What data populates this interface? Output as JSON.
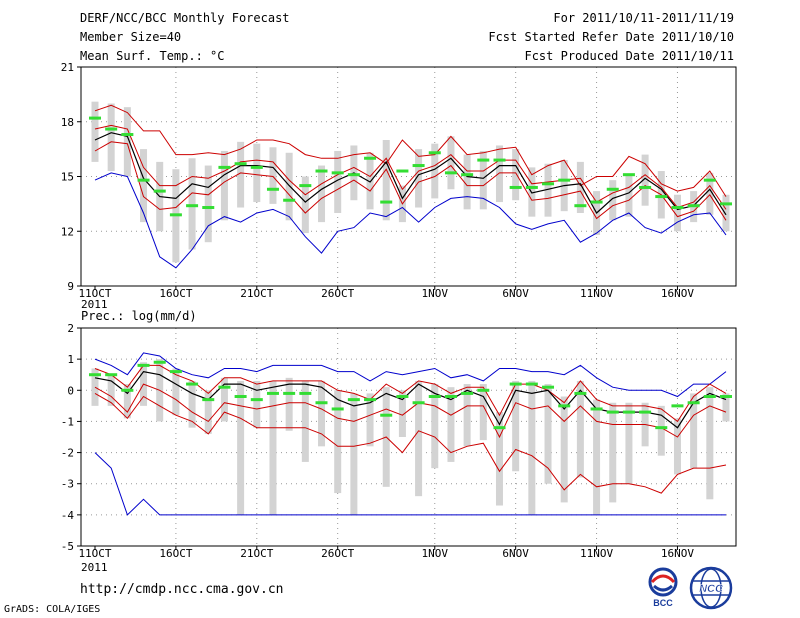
{
  "header": {
    "title": "DERF/NCC/BCC Monthly Forecast",
    "member": "Member Size=40",
    "variable": "Mean Surf. Temp.: °C",
    "period": "For 2011/10/11-2011/11/19",
    "started": "Fcst Started Refer Date 2011/10/10",
    "produced": "Fcst Produced Date 2011/10/11"
  },
  "footer": {
    "url": "http://cmdp.ncc.cma.gov.cn",
    "credit": "GrADS: COLA/IGES",
    "logo_bcc": "BCC",
    "logo_ncc": "NCC"
  },
  "colors": {
    "envelope": "#0000cc",
    "spread": "#cc0000",
    "mean": "#000000",
    "median": "#33dd33",
    "box": "#d3d3d3",
    "grid": "#999999"
  },
  "chart_data": [
    {
      "type": "line",
      "title": "Mean Surf. Temp.: °C",
      "ylim": [
        9,
        21
      ],
      "yticks": [
        9,
        12,
        15,
        18,
        21
      ],
      "xticks": [
        {
          "day": 0,
          "label": "11OCT",
          "sub": "2011"
        },
        {
          "day": 5,
          "label": "16OCT"
        },
        {
          "day": 10,
          "label": "21OCT"
        },
        {
          "day": 15,
          "label": "26OCT"
        },
        {
          "day": 21,
          "label": "1NOV"
        },
        {
          "day": 26,
          "label": "6NOV"
        },
        {
          "day": 31,
          "label": "11NOV"
        },
        {
          "day": 36,
          "label": "16NOV"
        }
      ],
      "days": 40,
      "series": [
        {
          "name": "max",
          "values": [
            14.8,
            15.2,
            15.0,
            13.0,
            10.6,
            10.0,
            11.0,
            12.3,
            12.8,
            12.5,
            13.0,
            13.2,
            12.8,
            11.7,
            10.8,
            12.0,
            12.2,
            13.0,
            12.8,
            13.3,
            12.5,
            13.3,
            13.8,
            13.9,
            13.8,
            13.3,
            12.4,
            12.1,
            12.4,
            12.6,
            11.4,
            11.9,
            12.6,
            13.0,
            12.2,
            11.9,
            12.5,
            12.9,
            13.0,
            11.8
          ]
        },
        {
          "name": "upper",
          "values": [
            18.6,
            18.9,
            18.5,
            17.5,
            17.5,
            16.2,
            16.2,
            16.3,
            16.2,
            16.5,
            17.0,
            17.0,
            16.8,
            16.2,
            16.0,
            16.0,
            16.2,
            16.3,
            15.7,
            17.0,
            16.1,
            16.2,
            17.2,
            16.2,
            16.3,
            16.5,
            16.6,
            15.1,
            15.6,
            15.9,
            14.5,
            15.0,
            15.0,
            16.1,
            15.7,
            14.6,
            14.2,
            14.4,
            15.3,
            13.9
          ]
        },
        {
          "name": "spread_up",
          "values": [
            17.6,
            17.8,
            17.6,
            15.5,
            14.5,
            14.5,
            15.0,
            14.9,
            15.3,
            15.8,
            15.9,
            15.8,
            14.8,
            14.0,
            14.6,
            15.1,
            15.5,
            15.0,
            16.0,
            14.3,
            15.3,
            15.6,
            16.2,
            15.3,
            15.3,
            15.9,
            15.9,
            14.6,
            14.7,
            14.8,
            14.9,
            13.6,
            14.1,
            14.4,
            15.1,
            14.4,
            13.3,
            13.6,
            14.5,
            13.2
          ]
        },
        {
          "name": "mean",
          "values": [
            17.0,
            17.4,
            17.2,
            14.9,
            13.9,
            13.8,
            14.6,
            14.4,
            15.1,
            15.6,
            15.6,
            15.5,
            14.5,
            13.6,
            14.3,
            14.8,
            15.2,
            14.7,
            15.8,
            13.8,
            15.1,
            15.4,
            16.0,
            15.0,
            14.9,
            15.6,
            15.6,
            14.1,
            14.3,
            14.5,
            14.6,
            13.0,
            13.8,
            14.1,
            14.9,
            14.3,
            13.2,
            13.4,
            14.3,
            12.9
          ]
        },
        {
          "name": "spread_low",
          "values": [
            16.4,
            16.9,
            16.8,
            13.9,
            13.2,
            13.3,
            14.1,
            14.0,
            14.7,
            15.2,
            15.1,
            15.0,
            14.0,
            13.0,
            13.8,
            14.3,
            14.8,
            14.2,
            15.4,
            13.5,
            14.7,
            15.0,
            15.6,
            14.5,
            14.5,
            15.2,
            15.2,
            13.7,
            13.8,
            14.0,
            14.2,
            12.7,
            13.4,
            13.7,
            14.5,
            14.0,
            12.8,
            13.1,
            14.0,
            12.6
          ]
        },
        {
          "name": "median",
          "values": [
            18.2,
            17.6,
            17.3,
            14.8,
            14.2,
            12.9,
            13.4,
            13.3,
            15.5,
            15.7,
            15.5,
            14.3,
            13.7,
            14.5,
            15.3,
            15.2,
            15.1,
            16.0,
            13.6,
            15.3,
            15.6,
            16.3,
            15.2,
            15.1,
            15.9,
            15.9,
            14.4,
            14.4,
            14.6,
            14.8,
            13.4,
            13.6,
            14.3,
            15.1,
            14.4,
            13.9,
            13.3,
            13.4,
            14.8,
            13.5
          ]
        },
        {
          "name": "box_top",
          "values": [
            19.1,
            19.0,
            18.8,
            16.5,
            15.8,
            15.4,
            16.0,
            15.6,
            16.4,
            16.9,
            16.8,
            16.6,
            16.3,
            15.0,
            15.6,
            16.4,
            16.7,
            16.3,
            17.0,
            14.5,
            16.5,
            16.8,
            17.2,
            16.2,
            16.4,
            16.7,
            16.5,
            15.5,
            15.7,
            15.9,
            15.8,
            14.2,
            14.8,
            15.1,
            16.2,
            15.3,
            14.0,
            14.2,
            15.2,
            14.0
          ]
        },
        {
          "name": "box_bottom",
          "values": [
            15.8,
            15.3,
            15.0,
            12.5,
            12.0,
            10.3,
            11.0,
            11.4,
            12.6,
            13.3,
            13.6,
            13.5,
            12.6,
            11.9,
            12.5,
            13.0,
            13.7,
            13.2,
            12.6,
            12.5,
            13.3,
            13.8,
            14.3,
            13.2,
            13.2,
            13.6,
            13.7,
            12.8,
            12.8,
            13.1,
            13.0,
            11.8,
            12.6,
            12.8,
            13.4,
            12.7,
            12.0,
            12.5,
            12.9,
            12.0
          ]
        }
      ]
    },
    {
      "type": "line",
      "title": "Prec.: log(mm/d)",
      "ylim": [
        -5,
        2
      ],
      "yticks": [
        -5,
        -4,
        -3,
        -2,
        -1,
        0,
        1,
        2
      ],
      "xticks": [
        {
          "day": 0,
          "label": "11OCT",
          "sub": "2011"
        },
        {
          "day": 5,
          "label": "16OCT"
        },
        {
          "day": 10,
          "label": "21OCT"
        },
        {
          "day": 15,
          "label": "26OCT"
        },
        {
          "day": 21,
          "label": "1NOV"
        },
        {
          "day": 26,
          "label": "6NOV"
        },
        {
          "day": 31,
          "label": "11NOV"
        },
        {
          "day": 36,
          "label": "16NOV"
        }
      ],
      "days": 40,
      "series": [
        {
          "name": "max",
          "values": [
            1.0,
            0.8,
            0.5,
            1.2,
            1.1,
            0.7,
            0.5,
            0.4,
            0.7,
            0.7,
            0.6,
            0.8,
            0.8,
            0.8,
            0.8,
            0.6,
            0.6,
            0.3,
            0.6,
            0.5,
            0.6,
            0.7,
            0.4,
            0.5,
            0.3,
            0.7,
            0.7,
            0.6,
            0.6,
            0.5,
            0.8,
            0.4,
            0.1,
            0.0,
            0.0,
            0.0,
            -0.2,
            0.2,
            0.2,
            0.6
          ]
        },
        {
          "name": "upper",
          "values": [
            0.7,
            0.5,
            0.1,
            0.8,
            0.8,
            0.5,
            0.3,
            -0.1,
            0.4,
            0.4,
            0.2,
            0.3,
            0.3,
            0.3,
            0.3,
            0.0,
            -0.1,
            -0.3,
            0.2,
            -0.1,
            0.3,
            0.2,
            -0.1,
            0.1,
            0.1,
            -0.8,
            0.2,
            0.2,
            0.0,
            -0.4,
            0.3,
            -0.3,
            -0.5,
            -0.5,
            -0.5,
            -0.6,
            -1.0,
            -0.2,
            0.2,
            -0.1
          ]
        },
        {
          "name": "mean",
          "values": [
            0.4,
            0.3,
            -0.1,
            0.6,
            0.5,
            0.2,
            -0.1,
            -0.3,
            0.2,
            0.2,
            0.0,
            0.1,
            0.2,
            0.2,
            0.1,
            -0.3,
            -0.5,
            -0.4,
            -0.1,
            -0.3,
            0.2,
            -0.1,
            -0.3,
            0.0,
            -0.2,
            -1.1,
            0.0,
            -0.1,
            0.0,
            -0.6,
            0.0,
            -0.6,
            -0.7,
            -0.7,
            -0.7,
            -0.8,
            -1.2,
            -0.4,
            -0.1,
            -0.3
          ]
        },
        {
          "name": "spread_low",
          "values": [
            0.1,
            -0.2,
            -0.7,
            0.2,
            0.0,
            -0.3,
            -0.7,
            -1.0,
            -0.4,
            -0.5,
            -0.6,
            -0.5,
            -0.4,
            -0.4,
            -0.6,
            -0.9,
            -1.0,
            -0.8,
            -0.6,
            -0.8,
            -0.4,
            -0.5,
            -0.8,
            -0.5,
            -0.5,
            -1.5,
            -0.4,
            -0.6,
            -0.5,
            -1.0,
            -0.5,
            -1.0,
            -1.1,
            -1.1,
            -1.1,
            -1.2,
            -1.5,
            -0.8,
            -0.5,
            -0.7
          ]
        },
        {
          "name": "lower",
          "values": [
            -0.1,
            -0.4,
            -0.9,
            -0.2,
            -0.5,
            -0.8,
            -1.0,
            -1.4,
            -0.7,
            -0.9,
            -1.2,
            -1.2,
            -1.2,
            -1.2,
            -1.4,
            -1.8,
            -1.8,
            -1.7,
            -1.5,
            -2.0,
            -1.3,
            -1.5,
            -2.0,
            -1.8,
            -1.7,
            -2.6,
            -1.9,
            -2.1,
            -2.5,
            -3.2,
            -2.7,
            -3.1,
            -3.0,
            -3.0,
            -3.1,
            -3.3,
            -2.7,
            -2.5,
            -2.5,
            -2.4
          ]
        },
        {
          "name": "min",
          "values": [
            -2.0,
            -2.5,
            -4.0,
            -3.5,
            -4.0,
            -4.0,
            -4.0,
            -4.0,
            -4.0,
            -4.0,
            -4.0,
            -4.0,
            -4.0,
            -4.0,
            -4.0,
            -4.0,
            -4.0,
            -4.0,
            -4.0,
            -4.0,
            -4.0,
            -4.0,
            -4.0,
            -4.0,
            -4.0,
            -4.0,
            -4.0,
            -4.0,
            -4.0,
            -4.0,
            -4.0,
            -4.0,
            -4.0,
            -4.0,
            -4.0,
            -4.0,
            -4.0,
            -4.0,
            -4.0,
            -4.0
          ]
        },
        {
          "name": "median",
          "values": [
            0.5,
            0.5,
            0.0,
            0.8,
            0.9,
            0.6,
            0.2,
            -0.3,
            0.1,
            -0.2,
            -0.3,
            -0.1,
            -0.1,
            -0.1,
            -0.4,
            -0.6,
            -0.3,
            -0.3,
            -0.8,
            -0.2,
            -0.4,
            -0.2,
            -0.2,
            -0.1,
            0.0,
            -1.2,
            0.2,
            0.2,
            0.1,
            -0.5,
            -0.1,
            -0.6,
            -0.7,
            -0.7,
            -0.7,
            -1.2,
            -0.5,
            -0.4,
            -0.2,
            -0.2
          ]
        },
        {
          "name": "box_top",
          "values": [
            0.7,
            0.5,
            0.2,
            0.9,
            1.0,
            0.7,
            0.3,
            0.0,
            0.4,
            0.3,
            0.3,
            0.3,
            0.4,
            0.3,
            0.3,
            0.0,
            -0.1,
            -0.1,
            0.1,
            0.0,
            0.3,
            0.2,
            0.1,
            0.2,
            0.2,
            -0.7,
            0.3,
            0.3,
            0.2,
            -0.2,
            0.3,
            -0.3,
            -0.4,
            -0.4,
            -0.4,
            -0.5,
            -0.9,
            -0.1,
            0.1,
            -0.1
          ]
        },
        {
          "name": "box_bottom",
          "values": [
            -0.5,
            -0.5,
            -0.9,
            -0.5,
            -1.0,
            -0.8,
            -1.2,
            -1.4,
            -1.0,
            -4.0,
            -1.2,
            -4.0,
            -1.3,
            -2.3,
            -1.8,
            -3.3,
            -4.0,
            -1.8,
            -3.1,
            -1.5,
            -3.4,
            -2.5,
            -2.3,
            -1.8,
            -1.6,
            -3.7,
            -2.6,
            -4.0,
            -3.0,
            -3.6,
            -2.8,
            -4.0,
            -3.6,
            -3.0,
            -1.8,
            -2.1,
            -2.7,
            -2.5,
            -3.5,
            -1.0
          ]
        }
      ]
    }
  ]
}
